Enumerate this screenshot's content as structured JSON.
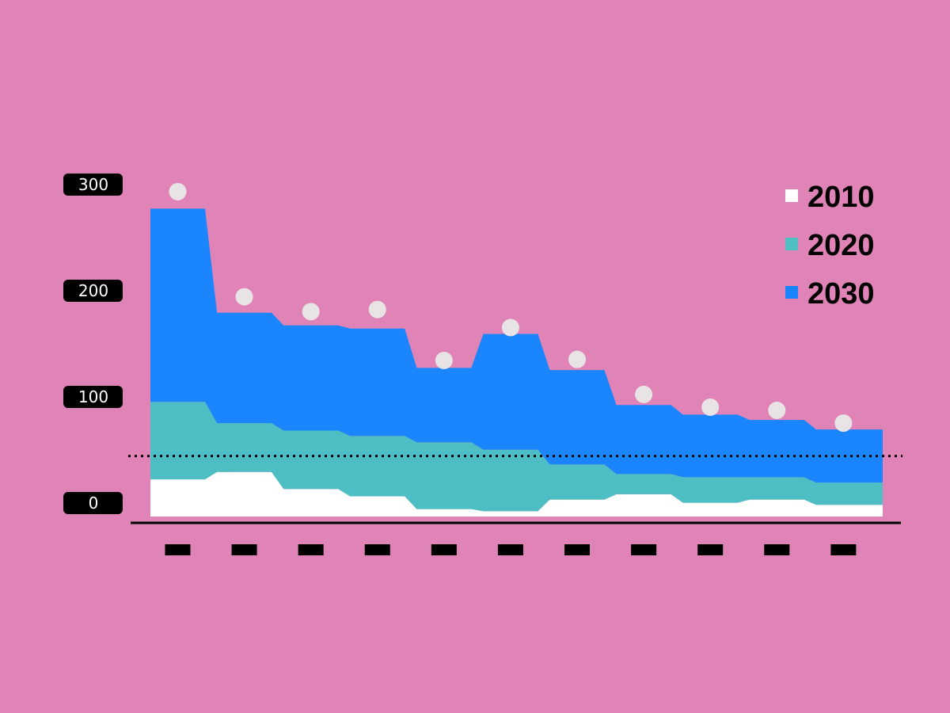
{
  "chart_data": {
    "type": "area",
    "stacked": true,
    "ylim": [
      0,
      300
    ],
    "yticks": [
      {
        "value": 0,
        "label": "0"
      },
      {
        "value": 100,
        "label": "100"
      },
      {
        "value": 200,
        "label": "200"
      },
      {
        "value": 300,
        "label": "300"
      }
    ],
    "category_count": 11,
    "category_labels_redacted": true,
    "series": [
      {
        "name": "2010",
        "color": "#ffffff",
        "values": [
          35,
          42,
          26,
          19,
          7,
          5,
          16,
          21,
          13,
          16,
          11
        ]
      },
      {
        "name": "2020",
        "color": "#4dbfc4",
        "values": [
          73,
          46,
          55,
          57,
          63,
          58,
          33,
          19,
          24,
          21,
          21
        ]
      },
      {
        "name": "2030",
        "color": "#1a85fd",
        "values": [
          182,
          104,
          99,
          101,
          70,
          109,
          89,
          65,
          59,
          54,
          50
        ]
      }
    ],
    "markers": {
      "color": "#e8e4e6",
      "values": [
        306,
        207,
        193,
        195,
        147,
        178,
        148,
        115,
        103,
        100,
        88
      ]
    },
    "reference_line": {
      "value": 57,
      "style": "dotted",
      "color": "#000000"
    },
    "legend": {
      "position": "top-right"
    }
  }
}
